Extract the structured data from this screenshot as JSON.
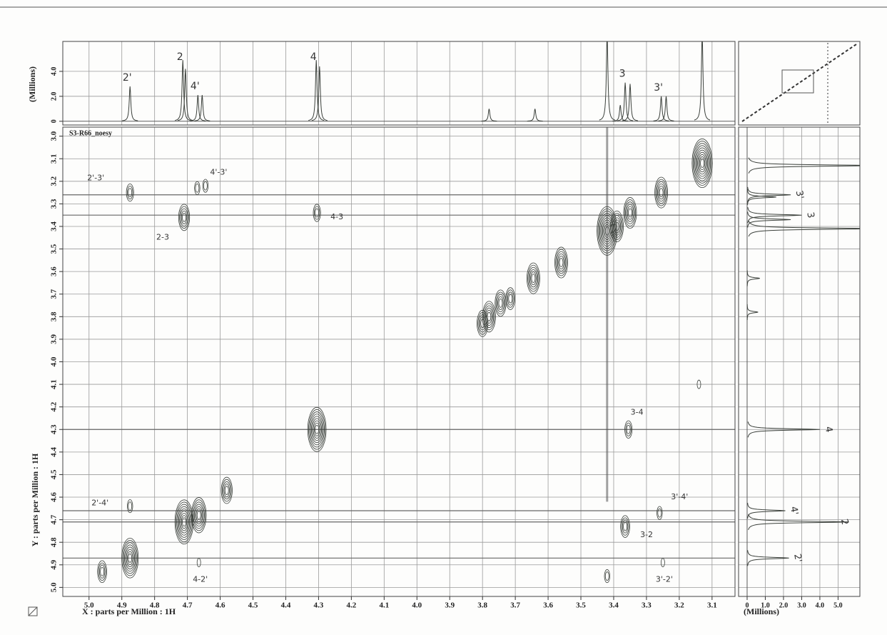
{
  "chart_data": {
    "type": "nmr2d",
    "title": "S3-R66_noesy",
    "x_label": "X : parts per Million : 1H",
    "y_label": "Y : parts per Million : 1H",
    "xlim": [
      5.08,
      3.03
    ],
    "ylim": [
      2.96,
      5.04
    ],
    "xticks": [
      {
        "value": 5.0,
        "label": "5.0"
      },
      4.9,
      4.8,
      4.7,
      4.6,
      4.5,
      4.4,
      4.3,
      4.2,
      4.1,
      {
        "value": 4.0,
        "label": "4.0"
      },
      3.9,
      3.8,
      3.7,
      3.6,
      3.5,
      3.4,
      3.3,
      3.2,
      3.1
    ],
    "yticks": [
      {
        "value": 3.0,
        "label": "3.0"
      },
      3.1,
      3.2,
      3.3,
      3.4,
      3.5,
      3.6,
      3.7,
      3.8,
      3.9,
      {
        "value": 4.0,
        "label": "4.0"
      },
      4.1,
      4.2,
      4.3,
      4.4,
      4.5,
      4.6,
      4.7,
      4.8,
      4.9,
      {
        "value": 5.0,
        "label": "5.0"
      }
    ],
    "grid": true,
    "color": "#3b403b",
    "top_spectrum": {
      "y_label": "(Millions)",
      "ylim": [
        -0.3,
        6.4
      ],
      "yticks": [
        0,
        {
          "value": 2,
          "label": "2.0"
        },
        {
          "value": 4,
          "label": "4.0"
        }
      ],
      "x": [
        4.875,
        4.714,
        4.706,
        4.668,
        4.655,
        4.307,
        4.297,
        3.78,
        3.64,
        3.42,
        3.38,
        3.365,
        3.35,
        3.255,
        3.24,
        3.13
      ],
      "values": [
        2.8,
        4.9,
        4.2,
        2.1,
        2.1,
        4.9,
        4.4,
        1.0,
        1.0,
        7.0,
        1.3,
        3.1,
        3.0,
        2.0,
        2.0,
        7.0
      ],
      "labels": [
        "2'",
        "2",
        null,
        "4'",
        null,
        "4",
        null,
        null,
        null,
        null,
        null,
        "3",
        null,
        "3'",
        null,
        null
      ]
    },
    "side_spectrum": {
      "x_label": "(Millions)",
      "xlim": [
        -0.47,
        6.2
      ],
      "xticks": [
        0,
        {
          "value": 1,
          "label": "1.0"
        },
        {
          "value": 2,
          "label": "2.0"
        },
        {
          "value": 3,
          "label": "3.0"
        },
        {
          "value": 4,
          "label": "4.0"
        },
        {
          "value": 5,
          "label": "5.0"
        }
      ],
      "y": [
        3.13,
        3.26,
        3.27,
        3.35,
        3.37,
        3.41,
        3.63,
        3.78,
        4.3,
        4.66,
        4.71,
        4.87
      ],
      "values": [
        7.0,
        2.4,
        1.6,
        3.0,
        2.4,
        7.0,
        0.7,
        0.6,
        4.0,
        2.1,
        5.6,
        2.3
      ],
      "labels": [
        null,
        "3'",
        null,
        "3",
        null,
        null,
        null,
        null,
        "4",
        "4'",
        "2",
        "2'"
      ]
    },
    "peaks": {
      "x": [
        4.875,
        4.67,
        4.645,
        4.71,
        4.305,
        3.355,
        3.26,
        4.875,
        3.365,
        4.665,
        3.25,
        4.96,
        4.875,
        4.71,
        4.665,
        4.58,
        4.305,
        3.8,
        3.78,
        3.745,
        3.715,
        3.645,
        3.56,
        3.42,
        3.39,
        3.35,
        3.255,
        3.13,
        3.14,
        3.42
      ],
      "y": [
        3.25,
        3.23,
        3.22,
        3.36,
        3.34,
        4.3,
        4.67,
        4.64,
        4.73,
        4.89,
        4.89,
        4.93,
        4.87,
        4.71,
        4.68,
        4.57,
        4.3,
        3.83,
        3.8,
        3.74,
        3.72,
        3.63,
        3.56,
        3.42,
        3.4,
        3.34,
        3.25,
        3.12,
        4.1,
        4.95
      ],
      "levels": [
        3,
        2,
        2,
        5,
        3,
        3,
        2,
        2,
        4,
        1,
        1,
        4,
        8,
        9,
        7,
        5,
        9,
        5,
        6,
        5,
        4,
        6,
        6,
        10,
        6,
        6,
        6,
        10,
        1,
        2
      ],
      "labels": [
        "2'-3'",
        "4'-3'",
        null,
        "2-3",
        "4-3",
        "3-4",
        "3'-4'",
        "2'-4'",
        "3-2",
        "4-2'",
        "3'-2'",
        null,
        null,
        null,
        null,
        null,
        null,
        null,
        null,
        null,
        null,
        null,
        null,
        null,
        null,
        null,
        null,
        null,
        null,
        null
      ]
    }
  }
}
